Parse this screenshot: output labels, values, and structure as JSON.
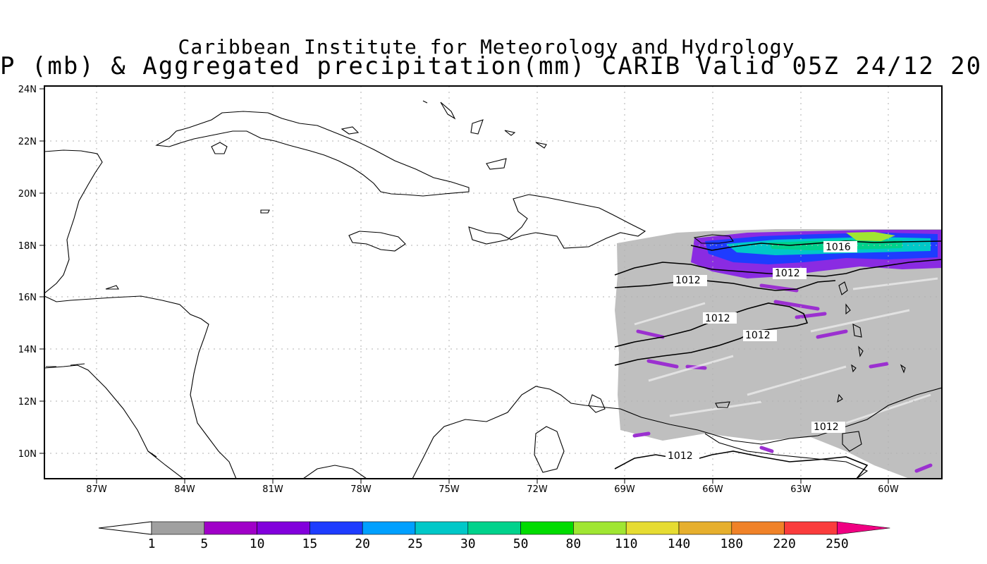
{
  "title": {
    "line1": "Caribbean Institute for Meteorology and Hydrology",
    "line2": "P (mb) & Aggregated precipitation(mm) CARIB Valid 05Z 24/12 20"
  },
  "axes": {
    "lat_labels": [
      "24N",
      "22N",
      "20N",
      "18N",
      "16N",
      "14N",
      "12N",
      "10N"
    ],
    "lon_labels": [
      "87W",
      "84W",
      "81W",
      "78W",
      "75W",
      "72W",
      "69W",
      "66W",
      "63W",
      "60W"
    ]
  },
  "contour_labels": [
    "1016",
    "1012",
    "1012",
    "1012",
    "1012",
    "1012",
    "1012"
  ],
  "colorbar": {
    "labels": [
      "1",
      "5",
      "10",
      "15",
      "20",
      "25",
      "30",
      "50",
      "80",
      "110",
      "140",
      "180",
      "220",
      "250"
    ],
    "colors": [
      "#a0a0a0",
      "#a000c8",
      "#8200dc",
      "#1e3cff",
      "#00a0ff",
      "#00c8c8",
      "#00d28c",
      "#00dc00",
      "#a0e632",
      "#e6dc32",
      "#e6af2d",
      "#f08228",
      "#fa3c3c",
      "#f00082"
    ]
  }
}
